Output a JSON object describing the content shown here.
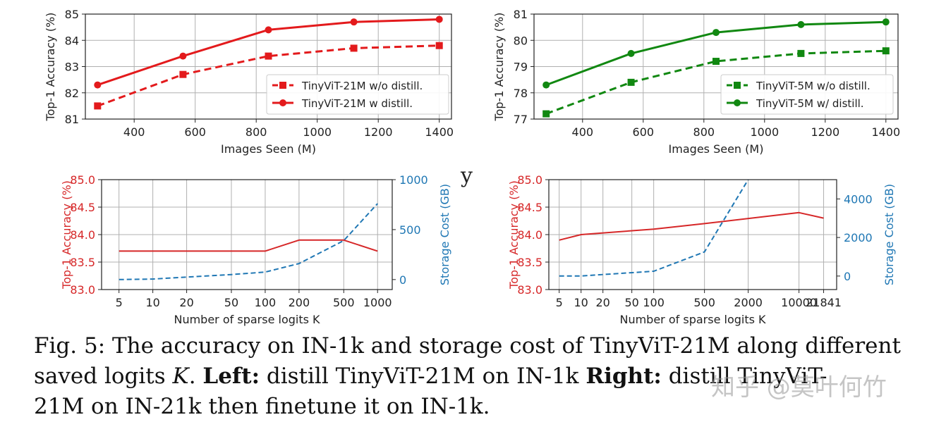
{
  "chart_data": [
    {
      "id": "top-left",
      "type": "line",
      "xlabel": "Images Seen (M)",
      "ylabel": "Top-1 Accuracy (%)",
      "xlim": [
        240,
        1440
      ],
      "ylim": [
        81,
        85
      ],
      "xticks": [
        400,
        600,
        800,
        1000,
        1200,
        1400
      ],
      "yticks": [
        81,
        82,
        83,
        84,
        85
      ],
      "grid": true,
      "legend": "lower-right",
      "series": [
        {
          "name": "TinyViT-21M w/o distill.",
          "color": "#e31a1c",
          "dash": true,
          "marker": "square",
          "x": [
            280,
            560,
            840,
            1120,
            1400
          ],
          "values": [
            81.5,
            82.7,
            83.4,
            83.7,
            83.8
          ]
        },
        {
          "name": "TinyViT-21M w distill.",
          "color": "#e31a1c",
          "dash": false,
          "marker": "circle",
          "x": [
            280,
            560,
            840,
            1120,
            1400
          ],
          "values": [
            82.3,
            83.4,
            84.4,
            84.7,
            84.8
          ]
        }
      ]
    },
    {
      "id": "top-right",
      "type": "line",
      "xlabel": "Images Seen (M)",
      "ylabel": "Top-1 Accuracy (%)",
      "xlim": [
        240,
        1440
      ],
      "ylim": [
        77,
        81
      ],
      "xticks": [
        400,
        600,
        800,
        1000,
        1200,
        1400
      ],
      "yticks": [
        77,
        78,
        79,
        80,
        81
      ],
      "grid": true,
      "legend": "lower-right",
      "series": [
        {
          "name": "TinyViT-5M w/o distill.",
          "color": "#118811",
          "dash": true,
          "marker": "square",
          "x": [
            280,
            560,
            840,
            1120,
            1400
          ],
          "values": [
            77.2,
            78.4,
            79.2,
            79.5,
            79.6
          ]
        },
        {
          "name": "TinyViT-5M w/ distill.",
          "color": "#118811",
          "dash": false,
          "marker": "circle",
          "x": [
            280,
            560,
            840,
            1120,
            1400
          ],
          "values": [
            78.3,
            79.5,
            80.3,
            80.6,
            80.7
          ]
        }
      ]
    },
    {
      "id": "bottom-left",
      "type": "line",
      "xlabel": "Number of sparse logits K",
      "ylabel": "Top-1 Accuracy (%)",
      "y2label": "Storage Cost (GB)",
      "categories": [
        "5",
        "10",
        "20",
        "50",
        "100",
        "200",
        "500",
        "1000"
      ],
      "xscale": "log",
      "xlim": [
        3.5,
        1350
      ],
      "ylim": [
        83.0,
        85.0
      ],
      "yticks": [
        "83.0",
        "83.5",
        "84.0",
        "84.5",
        "85.0"
      ],
      "y2lim": [
        -100,
        1000
      ],
      "y2ticks": [
        0,
        500,
        1000
      ],
      "grid": true,
      "series": [
        {
          "name": "Top-1 Accuracy",
          "axis": "left",
          "color": "#d62728",
          "dash": false,
          "x": [
            5,
            10,
            20,
            50,
            100,
            200,
            500,
            1000
          ],
          "values": [
            83.7,
            83.7,
            83.7,
            83.7,
            83.7,
            83.9,
            83.9,
            83.7
          ]
        },
        {
          "name": "Storage Cost",
          "axis": "right",
          "color": "#1f77b4",
          "dash": true,
          "x": [
            5,
            10,
            20,
            50,
            100,
            200,
            500,
            1000
          ],
          "values": [
            0,
            5,
            25,
            50,
            75,
            160,
            390,
            760
          ]
        }
      ]
    },
    {
      "id": "bottom-right",
      "type": "line",
      "xlabel": "Number of sparse logits K",
      "ylabel": "Top-1 Accuracy (%)",
      "y2label": "Storage Cost (GB)",
      "categories": [
        "5",
        "10",
        "20",
        "50",
        "100",
        "500",
        "2000",
        "10000",
        "21841"
      ],
      "xscale": "log",
      "xlim": [
        3.6,
        33000
      ],
      "ylim": [
        83.0,
        85.0
      ],
      "yticks": [
        "83.0",
        "83.5",
        "84.0",
        "84.5",
        "85.0"
      ],
      "y2lim": [
        -700,
        5000
      ],
      "y2ticks": [
        0,
        2000,
        4000
      ],
      "grid": true,
      "series": [
        {
          "name": "Top-1 Accuracy",
          "axis": "left",
          "color": "#d62728",
          "dash": false,
          "x": [
            5,
            10,
            100,
            500,
            10000,
            21841
          ],
          "values": [
            83.9,
            84.0,
            84.1,
            84.2,
            84.4,
            84.3
          ]
        },
        {
          "name": "Storage Cost",
          "axis": "right",
          "color": "#1f77b4",
          "dash": true,
          "x": [
            5,
            10,
            100,
            500,
            2000
          ],
          "values": [
            0,
            5,
            250,
            1250,
            5000
          ]
        }
      ]
    }
  ],
  "caption": {
    "line1": "Fig. 5: The accuracy on IN-1k and storage cost of TinyViT-21M along different",
    "line2_a": "saved logits ",
    "line2_k": "K",
    "line2_b": ". ",
    "line2_left": "Left:",
    "line2_c": "  distill TinyViT-21M on IN-1k ",
    "line2_right": "Right:",
    "line2_d": " distill TinyViT-",
    "line3": "21M on IN-21k then finetune it on IN-1k."
  },
  "artifact_text": "y",
  "watermark": "知乎 @莫叶何竹"
}
